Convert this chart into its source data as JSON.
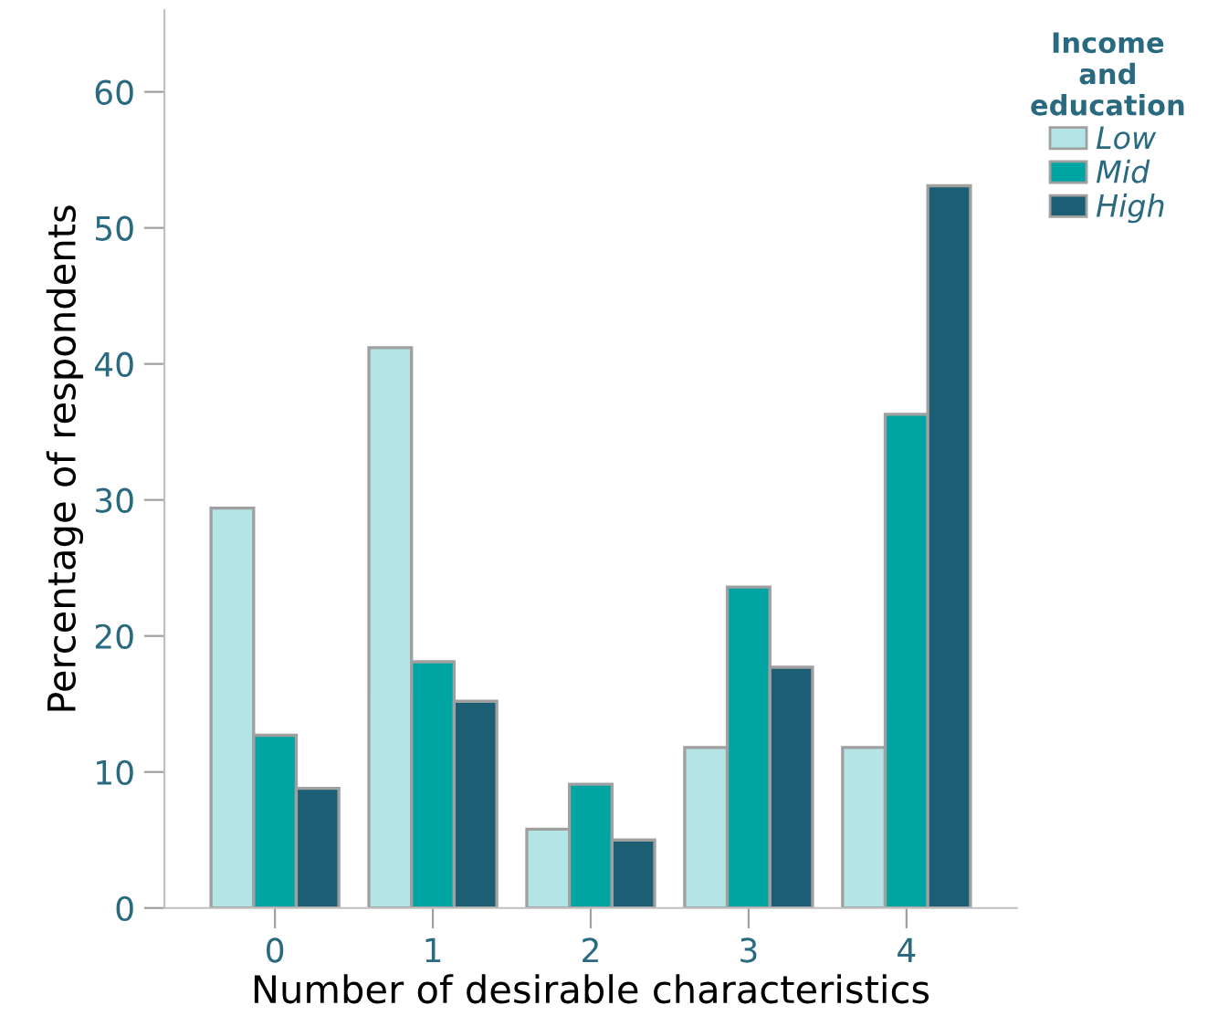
{
  "chart_data": {
    "type": "bar",
    "xlabel": "Number of desirable characteristics",
    "ylabel": "Percentage of respondents",
    "legend_title": "Income\nand\neducation",
    "categories": [
      "0",
      "1",
      "2",
      "3",
      "4"
    ],
    "series": [
      {
        "name": "Low",
        "color": "#b3e5e6",
        "values": [
          29.4,
          41.2,
          5.8,
          11.8,
          11.8
        ]
      },
      {
        "name": "Mid",
        "color": "#00a5a3",
        "values": [
          12.7,
          18.1,
          9.1,
          23.6,
          36.3
        ]
      },
      {
        "name": "High",
        "color": "#1c5e74",
        "values": [
          8.8,
          15.2,
          5.0,
          17.7,
          53.1
        ]
      }
    ],
    "ylim": [
      0,
      66
    ],
    "yticks": [
      0,
      10,
      20,
      30,
      40,
      50,
      60
    ],
    "grid": false,
    "legend": "top right"
  }
}
